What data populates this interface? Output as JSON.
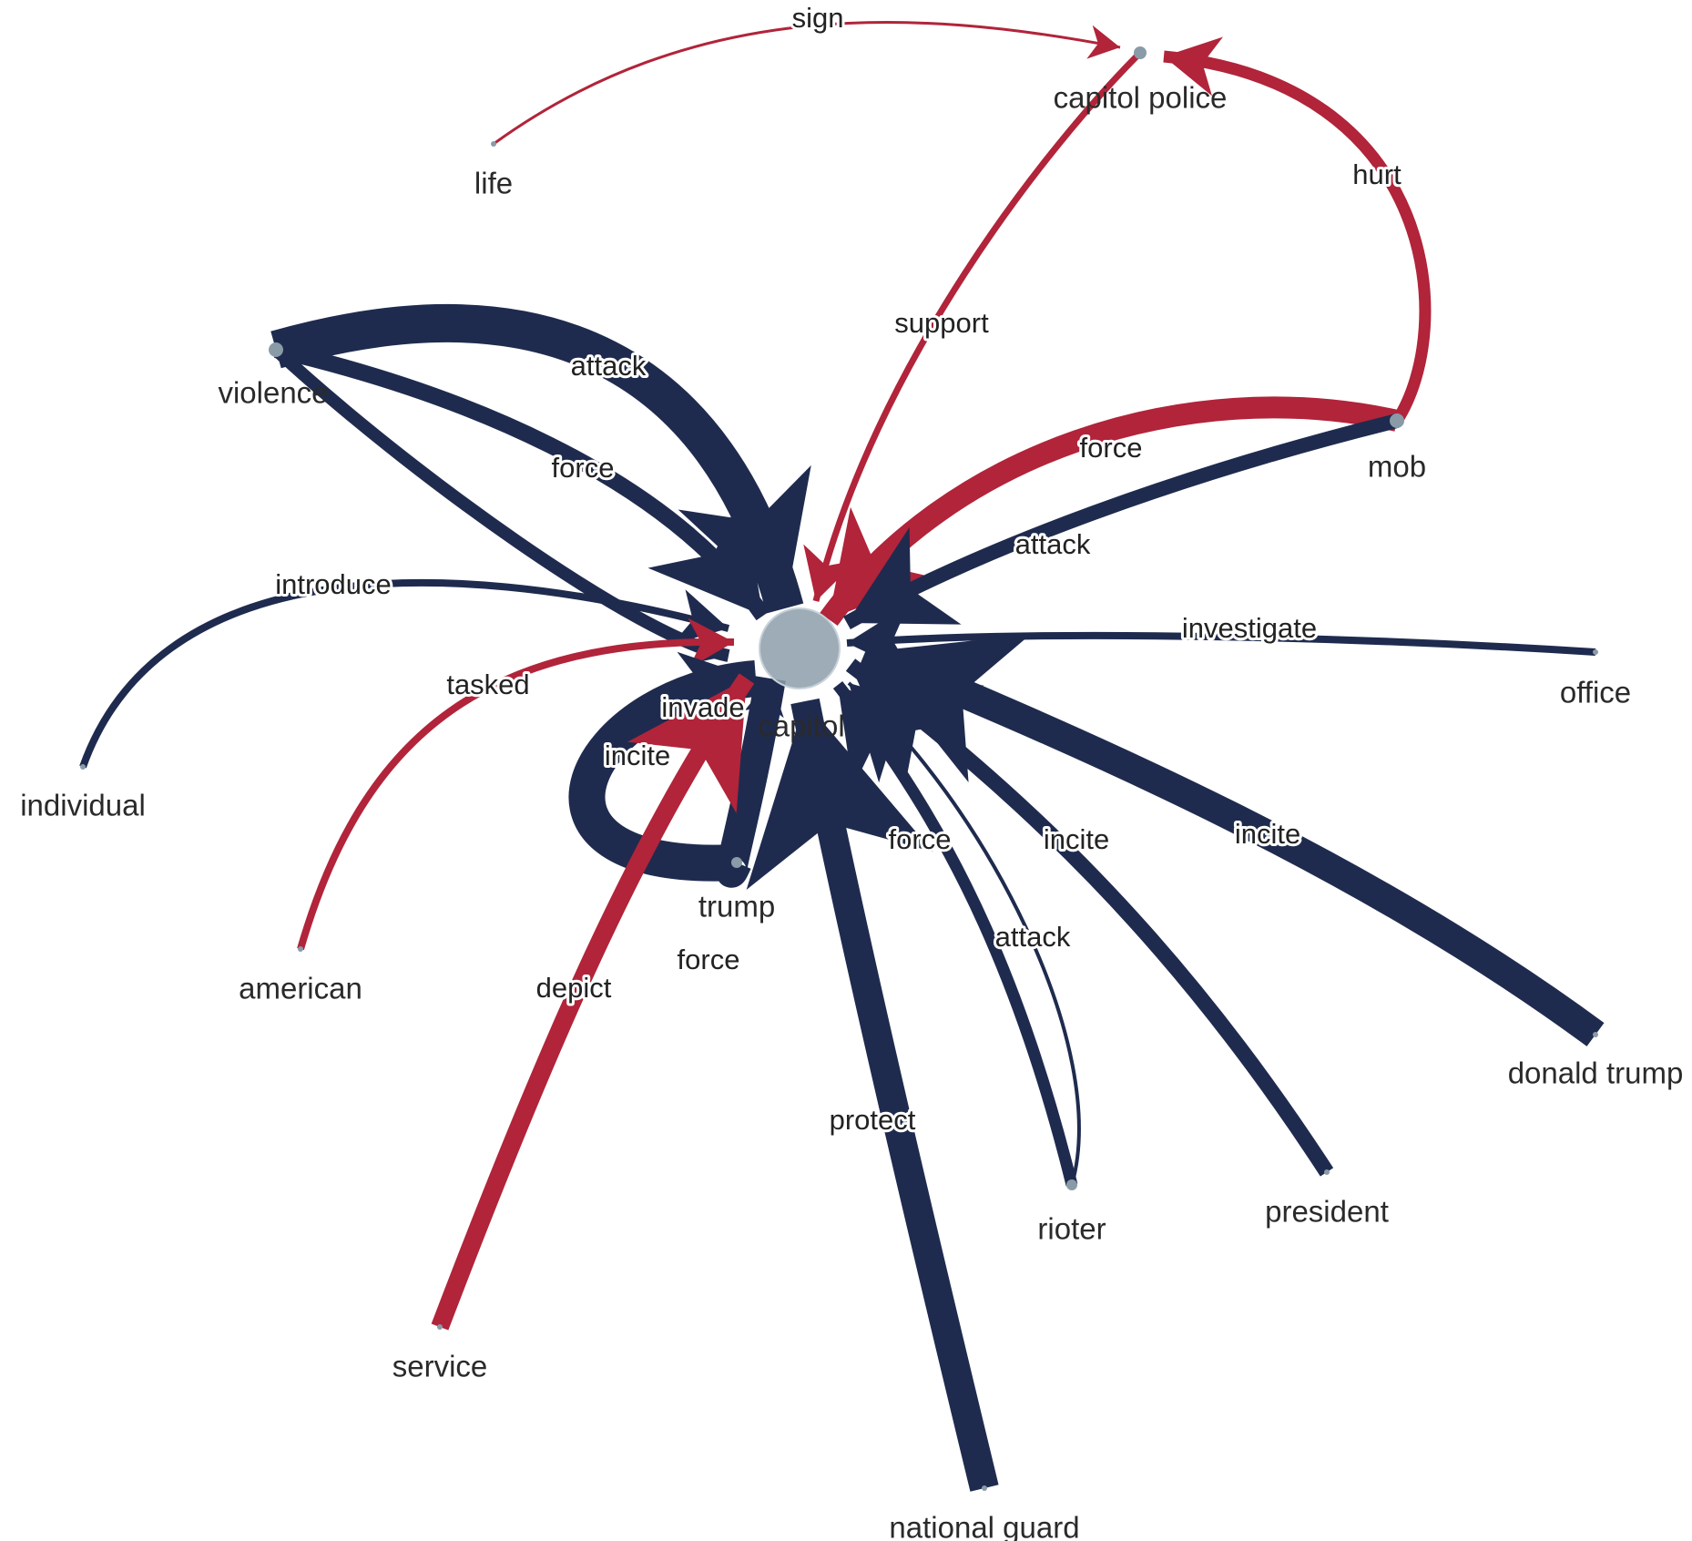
{
  "colors": {
    "navy": "#1f2b4e",
    "red": "#b1243a",
    "node": "#8a9ba8",
    "hub": "#8c9eaa"
  },
  "graph": {
    "nodes": [
      {
        "id": "capitol",
        "label": "capitol"
      },
      {
        "id": "capitol_police",
        "label": "capitol police"
      },
      {
        "id": "life",
        "label": "life"
      },
      {
        "id": "violence",
        "label": "violence"
      },
      {
        "id": "mob",
        "label": "mob"
      },
      {
        "id": "office",
        "label": "office"
      },
      {
        "id": "individual",
        "label": "individual"
      },
      {
        "id": "american",
        "label": "american"
      },
      {
        "id": "trump",
        "label": "trump"
      },
      {
        "id": "donald_trump",
        "label": "donald trump"
      },
      {
        "id": "rioter",
        "label": "rioter"
      },
      {
        "id": "president",
        "label": "president"
      },
      {
        "id": "service",
        "label": "service"
      },
      {
        "id": "national_guard",
        "label": "national guard"
      }
    ],
    "edges": [
      {
        "source": "life",
        "target": "capitol_police",
        "label": "sign",
        "color": "red"
      },
      {
        "source": "mob",
        "target": "capitol_police",
        "label": "hurt",
        "color": "red"
      },
      {
        "source": "capitol_police",
        "target": "capitol",
        "label": "support",
        "color": "red"
      },
      {
        "source": "violence",
        "target": "capitol",
        "label": "attack",
        "color": "navy"
      },
      {
        "source": "violence",
        "target": "capitol",
        "label": "force",
        "color": "navy"
      },
      {
        "source": "violence",
        "target": "capitol",
        "label": "invade",
        "color": "navy"
      },
      {
        "source": "mob",
        "target": "capitol",
        "label": "force",
        "color": "red"
      },
      {
        "source": "mob",
        "target": "capitol",
        "label": "attack",
        "color": "navy"
      },
      {
        "source": "individual",
        "target": "capitol",
        "label": "introduce",
        "color": "navy"
      },
      {
        "source": "american",
        "target": "capitol",
        "label": "tasked",
        "color": "red"
      },
      {
        "source": "office",
        "target": "capitol",
        "label": "investigate",
        "color": "navy"
      },
      {
        "source": "trump",
        "target": "capitol",
        "label": "incite",
        "color": "navy"
      },
      {
        "source": "trump",
        "target": "capitol",
        "label": "force",
        "color": "navy"
      },
      {
        "source": "service",
        "target": "capitol",
        "label": "depict",
        "color": "red"
      },
      {
        "source": "national_guard",
        "target": "capitol",
        "label": "protect",
        "color": "navy"
      },
      {
        "source": "rioter",
        "target": "capitol",
        "label": "force",
        "color": "navy"
      },
      {
        "source": "rioter",
        "target": "capitol",
        "label": "attack",
        "color": "navy"
      },
      {
        "source": "president",
        "target": "capitol",
        "label": "incite",
        "color": "navy"
      },
      {
        "source": "donald_trump",
        "target": "capitol",
        "label": "incite",
        "color": "navy"
      }
    ]
  }
}
